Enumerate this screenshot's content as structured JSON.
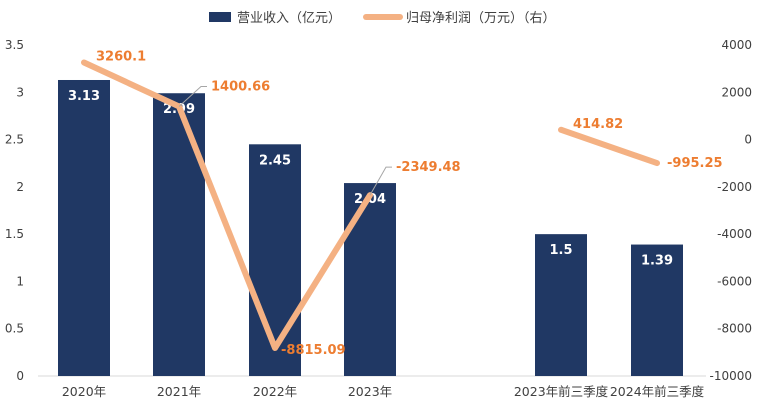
{
  "chart_data": {
    "type": "bar+line",
    "legend_position": "top-center",
    "categories": [
      "2020年",
      "2021年",
      "2022年",
      "2023年",
      "",
      "2023年前三季度",
      "2024年前三季度"
    ],
    "series": [
      {
        "name": "营业收入（亿元）",
        "type": "bar",
        "axis": "left",
        "color": "#203864",
        "values": [
          3.13,
          2.99,
          2.45,
          2.04,
          null,
          1.5,
          1.39
        ],
        "labels": [
          "3.13",
          "2.99",
          "2.45",
          "2.04",
          "",
          "1.5",
          "1.39"
        ]
      },
      {
        "name": "归母净利润（万元）（右）",
        "type": "line",
        "axis": "right",
        "color": "#F4B183",
        "label_color": "#ED7D31",
        "values": [
          3260.1,
          1400.66,
          -8815.09,
          -2349.48,
          null,
          414.82,
          -995.25
        ],
        "labels": [
          "3260.1",
          "1400.66",
          "-8815.09",
          "-2349.48",
          "",
          "414.82",
          "-995.25"
        ]
      }
    ],
    "left_axis": {
      "min": 0,
      "max": 3.5,
      "ticks": [
        "0",
        "0.5",
        "1",
        "1.5",
        "2",
        "2.5",
        "3",
        "3.5"
      ]
    },
    "right_axis": {
      "min": -10000,
      "max": 4000,
      "ticks": [
        "-10000",
        "-8000",
        "-6000",
        "-4000",
        "-2000",
        "0",
        "2000",
        "4000"
      ]
    }
  }
}
